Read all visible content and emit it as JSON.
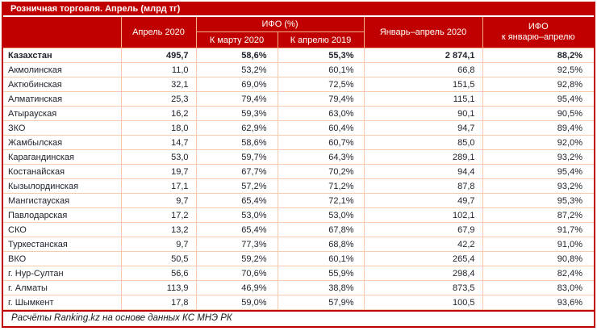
{
  "title": "Розничная торговля. Апрель (млрд тг)",
  "colors": {
    "accent": "#C00000",
    "header_grid": "#F4B183",
    "body_grid": "#F8CBAD",
    "header_text": "#FFFFFF",
    "body_text": "#20242C"
  },
  "table": {
    "headers": {
      "region": "",
      "april_2020": "Апрель 2020",
      "ifo_group": "ИФО (%)",
      "to_march_2020": "К марту 2020",
      "to_april_2019": "К апрелю 2019",
      "jan_apr_2020": "Январь–апрель 2020",
      "ifo_jan_apr_line1": "ИФО",
      "ifo_jan_apr_line2": "к январю–апрелю"
    },
    "rows": [
      {
        "region": "Казахстан",
        "bold": true,
        "values": [
          "495,7",
          "58,6%",
          "55,3%",
          "2 874,1",
          "88,2%"
        ]
      },
      {
        "region": "Акмолинская",
        "bold": false,
        "values": [
          "11,0",
          "53,2%",
          "60,1%",
          "66,8",
          "92,5%"
        ]
      },
      {
        "region": "Актюбинская",
        "bold": false,
        "values": [
          "32,1",
          "69,0%",
          "72,5%",
          "151,5",
          "92,8%"
        ]
      },
      {
        "region": "Алматинская",
        "bold": false,
        "values": [
          "25,3",
          "79,4%",
          "79,4%",
          "115,1",
          "95,4%"
        ]
      },
      {
        "region": "Атырауская",
        "bold": false,
        "values": [
          "16,2",
          "59,3%",
          "63,0%",
          "90,1",
          "90,5%"
        ]
      },
      {
        "region": "ЗКО",
        "bold": false,
        "values": [
          "18,0",
          "62,9%",
          "60,4%",
          "94,7",
          "89,4%"
        ]
      },
      {
        "region": "Жамбылская",
        "bold": false,
        "values": [
          "14,7",
          "58,6%",
          "60,7%",
          "85,0",
          "92,0%"
        ]
      },
      {
        "region": "Карагандинская",
        "bold": false,
        "values": [
          "53,0",
          "59,7%",
          "64,3%",
          "289,1",
          "93,2%"
        ]
      },
      {
        "region": "Костанайская",
        "bold": false,
        "values": [
          "19,7",
          "67,7%",
          "70,2%",
          "94,4",
          "95,4%"
        ]
      },
      {
        "region": "Кызылординская",
        "bold": false,
        "values": [
          "17,1",
          "57,2%",
          "71,2%",
          "87,8",
          "93,2%"
        ]
      },
      {
        "region": "Мангистауская",
        "bold": false,
        "values": [
          "9,7",
          "65,4%",
          "72,1%",
          "49,7",
          "95,3%"
        ]
      },
      {
        "region": "Павлодарская",
        "bold": false,
        "values": [
          "17,2",
          "53,0%",
          "53,0%",
          "102,1",
          "87,2%"
        ]
      },
      {
        "region": "СКО",
        "bold": false,
        "values": [
          "13,2",
          "65,4%",
          "67,8%",
          "67,9",
          "91,7%"
        ]
      },
      {
        "region": "Туркестанская",
        "bold": false,
        "values": [
          "9,7",
          "77,3%",
          "68,8%",
          "42,2",
          "91,0%"
        ]
      },
      {
        "region": "ВКО",
        "bold": false,
        "values": [
          "50,5",
          "59,2%",
          "60,1%",
          "265,4",
          "90,8%"
        ]
      },
      {
        "region": "г. Нур-Султан",
        "bold": false,
        "values": [
          "56,6",
          "70,6%",
          "55,9%",
          "298,4",
          "82,4%"
        ]
      },
      {
        "region": "г. Алматы",
        "bold": false,
        "values": [
          "113,9",
          "46,9%",
          "38,8%",
          "873,5",
          "83,0%"
        ]
      },
      {
        "region": "г. Шымкент",
        "bold": false,
        "values": [
          "17,8",
          "59,0%",
          "57,9%",
          "100,5",
          "93,6%"
        ]
      }
    ]
  },
  "footer": "Расчёты Ranking.kz на основе данных КС МНЭ РК"
}
